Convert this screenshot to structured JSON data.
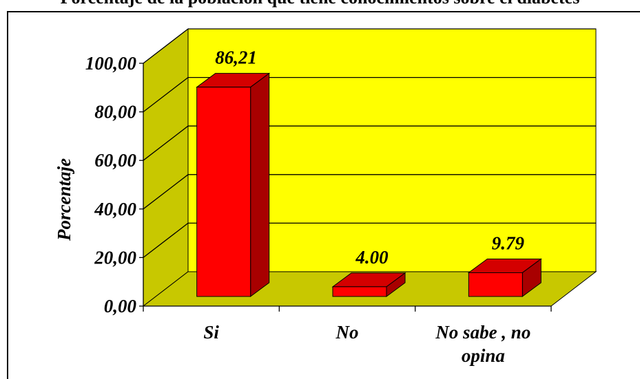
{
  "chart_data": {
    "type": "bar",
    "title": "Porcentaje de la población que tiene conocimientos sobre el diabetes",
    "ylabel": "Porcentaje",
    "xlabel": "",
    "categories": [
      "Si",
      "No",
      "No sabe , no opina"
    ],
    "values": [
      86.21,
      4.0,
      9.79
    ],
    "data_labels": [
      "86,21",
      "4.00",
      "9.79"
    ],
    "ylim": [
      0,
      100
    ],
    "yticks": [
      "0,00",
      "20,00",
      "40,00",
      "60,00",
      "80,00",
      "100,00"
    ],
    "grid": true,
    "legend": "none",
    "three_d": true,
    "colors": {
      "bar_front": "#ff0000",
      "bar_side": "#a80000",
      "bar_top": "#d40000",
      "back_wall": "#ffff00",
      "side_wall": "#c8c800",
      "floor": "#c8c800"
    }
  }
}
